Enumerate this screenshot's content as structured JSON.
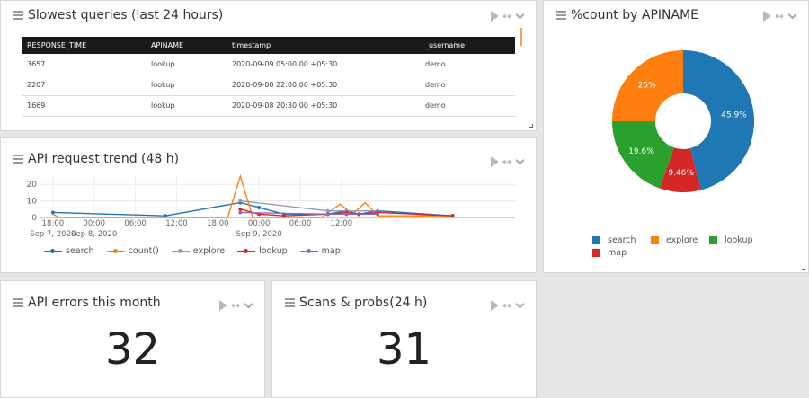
{
  "slowest": {
    "title": "Slowest queries (last 24 hours)",
    "columns": [
      "RESPONSE_TIME",
      "APINAME",
      "timestamp",
      "_username"
    ],
    "rows": [
      [
        "3657",
        "lookup",
        "2020-09-09 05:00:00 +05:30",
        "demo"
      ],
      [
        "2207",
        "lookup",
        "2020-09-08 22:00:00 +05:30",
        "demo"
      ],
      [
        "1669",
        "lookup",
        "2020-09-08 20:30:00 +05:30",
        "demo"
      ]
    ]
  },
  "pie": {
    "title": "%count by APINAME",
    "legend": [
      "search",
      "explore",
      "lookup",
      "map"
    ],
    "colors": {
      "search": "#1f77b4",
      "explore": "#ff7f0e",
      "lookup": "#2ca02c",
      "map": "#d62728"
    }
  },
  "trend": {
    "title": "API request trend (48 h)",
    "legend": [
      "search",
      "count()",
      "explore",
      "lookup",
      "map"
    ],
    "colors": {
      "search": "#1f77b4",
      "count()": "#ff7f0e",
      "explore": "#8da0b8",
      "lookup": "#d62728",
      "map": "#9467bd"
    },
    "y_ticks": [
      "20",
      "10",
      "0"
    ],
    "x_ticks": [
      {
        "t": "18:00",
        "d": "Sep 7, 2020"
      },
      {
        "t": "00:00",
        "d": "Sep 8, 2020"
      },
      {
        "t": "06:00",
        "d": ""
      },
      {
        "t": "12:00",
        "d": ""
      },
      {
        "t": "18:00",
        "d": ""
      },
      {
        "t": "00:00",
        "d": "Sep 9, 2020"
      },
      {
        "t": "06:00",
        "d": ""
      },
      {
        "t": "12:00",
        "d": ""
      }
    ]
  },
  "errors": {
    "title": "API errors this month",
    "value": "32"
  },
  "scans": {
    "title": "Scans & probs(24 h)",
    "value": "31"
  },
  "chart_data": [
    {
      "type": "pie",
      "title": "%count by APINAME",
      "labels": [
        "search",
        "map",
        "lookup",
        "explore"
      ],
      "values": [
        45.9,
        9.46,
        19.6,
        25
      ],
      "value_labels": [
        "45.9%",
        "9.46%",
        "19.6%",
        "25%"
      ],
      "donut": true,
      "legend": "bottom"
    },
    {
      "type": "line",
      "title": "API request trend (48 h)",
      "x_unit": "hours",
      "xlim": [
        -2,
        74
      ],
      "ylim": [
        0,
        25
      ],
      "series": [
        {
          "name": "search",
          "x": [
            0,
            18,
            30,
            33,
            37,
            44,
            47,
            49,
            52,
            64
          ],
          "y": [
            3,
            1,
            9,
            6,
            2,
            2,
            4,
            2,
            4,
            1
          ]
        },
        {
          "name": "count()",
          "x": [
            0,
            1,
            14,
            28,
            30,
            32,
            37,
            43,
            46,
            48,
            50,
            52,
            64
          ],
          "y": [
            2,
            0,
            0,
            0,
            25,
            0,
            0,
            0,
            8,
            2,
            9,
            1,
            1
          ]
        },
        {
          "name": "explore",
          "x": [
            30,
            44,
            47,
            52
          ],
          "y": [
            10,
            4,
            4,
            4
          ]
        },
        {
          "name": "lookup",
          "x": [
            30,
            33,
            37,
            44,
            47,
            49,
            52,
            64
          ],
          "y": [
            5,
            2,
            1,
            2,
            3,
            2,
            3,
            1
          ]
        },
        {
          "name": "map",
          "x": [
            30,
            44,
            47,
            52
          ],
          "y": [
            3,
            2,
            2,
            2
          ]
        }
      ]
    }
  ]
}
